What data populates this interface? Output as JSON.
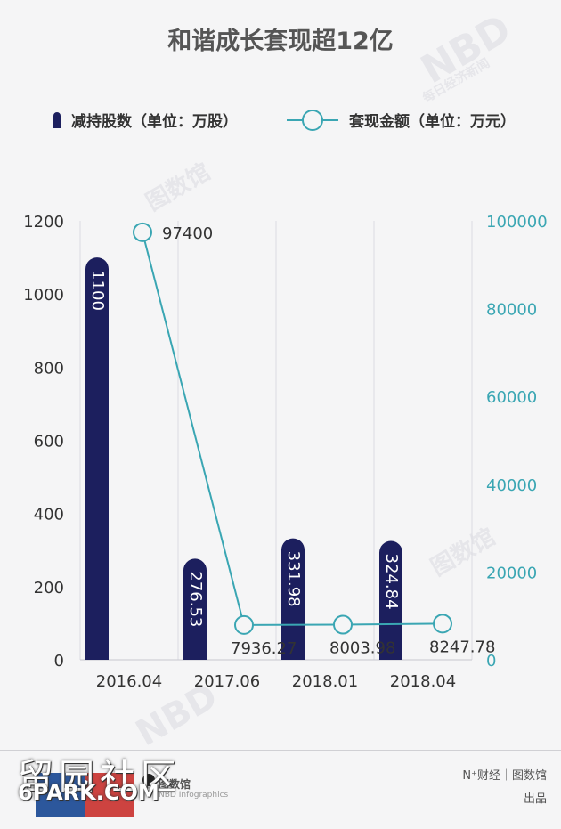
{
  "chart_data": {
    "type": "bar",
    "title": "和谐成长套现超12亿",
    "categories": [
      "2016.04",
      "2017.06",
      "2018.01",
      "2018.04"
    ],
    "series": [
      {
        "name": "减持股数（单位：万股）",
        "kind": "bar",
        "axis": "left",
        "values": [
          1100,
          276.53,
          331.98,
          324.84
        ],
        "labels": [
          "1100",
          "276.53",
          "331.98",
          "324.84"
        ]
      },
      {
        "name": "套现金额（单位：万元）",
        "kind": "line",
        "axis": "right",
        "values": [
          97400,
          7936.27,
          8003.98,
          8247.78
        ],
        "labels": [
          "97400",
          "7936.27",
          "8003.98",
          "8247.78"
        ]
      }
    ],
    "y_left": {
      "min": 0,
      "max": 1200,
      "ticks": [
        "0",
        "200",
        "400",
        "600",
        "800",
        "1000",
        "1200"
      ]
    },
    "y_right": {
      "min": 0,
      "max": 100000,
      "ticks": [
        "0",
        "20000",
        "40000",
        "60000",
        "80000",
        "100000"
      ]
    },
    "legend_position": "top",
    "grid": "vertical",
    "colors": {
      "bar": "#1c1f5e",
      "line": "#3aa6b3",
      "left_axis_text": "#333333",
      "right_axis_text": "#3aa6b3"
    }
  },
  "legend": {
    "bar_label": "减持股数（单位：万股）",
    "line_label": "套现金额（单位：万元）"
  },
  "watermarks": {
    "nbd": "NBD",
    "nbd_cn": "每日经济新闻",
    "infographics": "图数馆"
  },
  "footer": {
    "brand_line1": "N⁺财经｜图数馆",
    "brand_line2": "出品",
    "nbd_logo_text": "图数馆",
    "nbd_logo_sub": "NBD Infographics",
    "overlay_title": "留园社区",
    "overlay_site": "6PARK.COM"
  }
}
